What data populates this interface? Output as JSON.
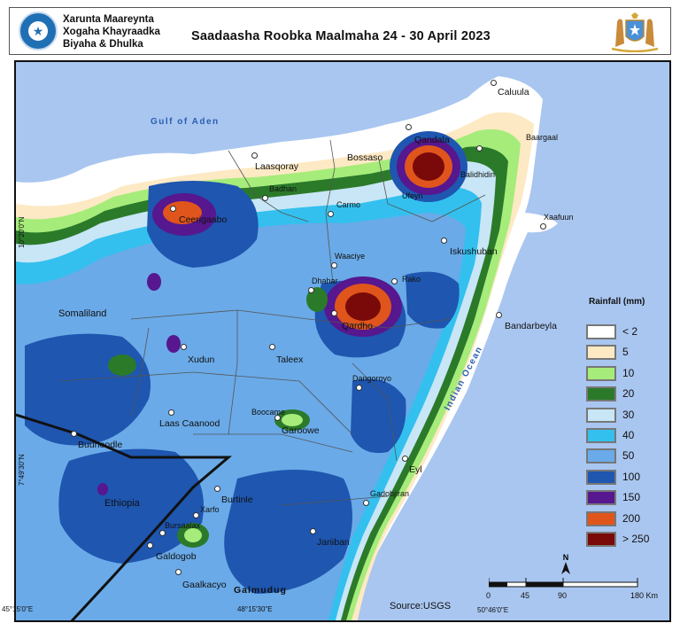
{
  "header": {
    "org_line1": "Xarunta Maareynta",
    "org_line2": "Xogaha Khayraadka",
    "org_line3": "Biyaha & Dhulka",
    "title": "Saadaasha Roobka Maalmaha 24 - 30 April  2023"
  },
  "map": {
    "sea_labels": {
      "gulf": "Gulf  of Aden",
      "ocean": "Indian Ocean"
    },
    "places": {
      "caluula": "Caluula",
      "baargaal": "Baargaal",
      "qandala": "Qandala",
      "bossaso": "Bossaso",
      "laasqoray": "Laasqoray",
      "badhan": "Badhan",
      "ceerigaabo": "Ceerigaabo",
      "carmo": "Carmo",
      "iskushuban": "Iskushuban",
      "xaafuun": "Xaafuun",
      "waaciye": "Waaciye",
      "dhahar": "Dhahar",
      "rako": "Rako",
      "qardho": "Qardho",
      "bandarbeyla": "Bandarbeyla",
      "somaliland": "Somaliland",
      "xudun": "Xudun",
      "taleex": "Taleex",
      "dangoroyo": "Dangoroyo",
      "laas_caanood": "Laas Caanood",
      "boocame": "Boocame",
      "garoowe": "Garoowe",
      "buuhoodle": "Buuhoodle",
      "eyl": "Eyl",
      "ethiopia": "Ethiopia",
      "burtinle": "Burtinle",
      "xarfo": "Xarfo",
      "bursaalax": "Bursaalax",
      "gadobjiran": "Gadobjiran",
      "galdogob": "Galdogob",
      "jariiban": "Jariiban",
      "gaalkacyo": "Gaalkacyo",
      "galmudug": "Galmudug",
      "balidhidin": "Balidhidin",
      "ufeyn": "Ufeyn"
    },
    "coords": {
      "lat1": "10°20'0\"N",
      "lat2": "7°49'30\"N",
      "lon1": "45°15'0\"E",
      "lon2": "48°15'30\"E",
      "lon3": "50°46'0\"E"
    }
  },
  "legend": {
    "title": "Rainfall (mm)",
    "items": [
      {
        "label": "< 2",
        "color": "#ffffff"
      },
      {
        "label": "5",
        "color": "#fde9c4"
      },
      {
        "label": "10",
        "color": "#a6ec7a"
      },
      {
        "label": "20",
        "color": "#2b7a2a"
      },
      {
        "label": "30",
        "color": "#c8e6f6"
      },
      {
        "label": "40",
        "color": "#33c0ee"
      },
      {
        "label": "50",
        "color": "#6aaae8"
      },
      {
        "label": "100",
        "color": "#1e56b0"
      },
      {
        "label": "150",
        "color": "#56178f"
      },
      {
        "label": "200",
        "color": "#e0551c"
      },
      {
        "label": "> 250",
        "color": "#7a0a0a"
      }
    ]
  },
  "scale": {
    "ticks": [
      "0",
      "45",
      "90",
      "180 Km"
    ],
    "north": "N"
  },
  "source": "Source:USGS"
}
